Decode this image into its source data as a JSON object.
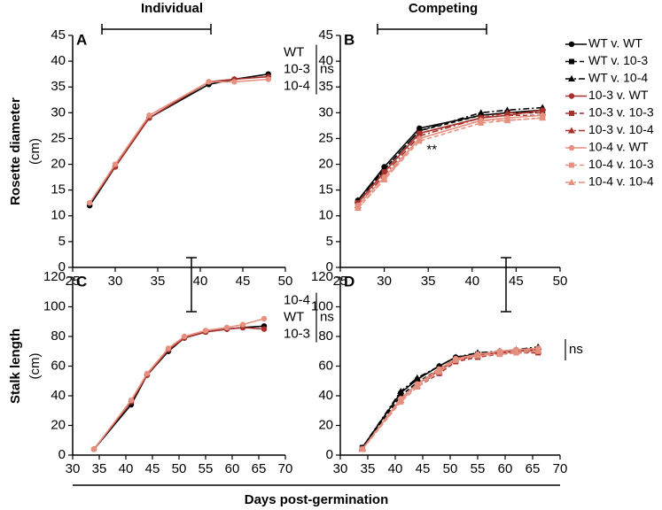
{
  "chart_data": [
    {
      "type": "line",
      "panel_label": "A",
      "title": "Individual",
      "ylabel": [
        "Rosette diameter",
        "(cm)"
      ],
      "x": [
        27,
        30,
        34,
        41,
        44,
        48
      ],
      "series": [
        {
          "name": "WT",
          "color": "#000000",
          "dash": "solid",
          "marker": "circle",
          "values": [
            12,
            19.5,
            29,
            35.5,
            36.5,
            37.5
          ]
        },
        {
          "name": "10-3",
          "color": "#a8312b",
          "dash": "solid",
          "marker": "circle",
          "values": [
            12.5,
            19.5,
            29,
            36,
            36.5,
            37
          ]
        },
        {
          "name": "10-4",
          "color": "#e8907f",
          "dash": "solid",
          "marker": "circle",
          "values": [
            12.5,
            20,
            29.5,
            36,
            36,
            36.5
          ]
        }
      ],
      "end_labels": true,
      "annotations": [
        "ns"
      ],
      "xlim": [
        25,
        50
      ],
      "xticks": [
        25,
        30,
        35,
        40,
        45,
        50
      ],
      "ylim": [
        0,
        45
      ],
      "yticks": [
        0,
        5,
        10,
        15,
        20,
        25,
        30,
        35,
        40,
        45
      ]
    },
    {
      "type": "line",
      "panel_label": "B",
      "title": "Competing",
      "x": [
        27,
        30,
        34,
        41,
        44,
        48
      ],
      "series": [
        {
          "name": "WT v. WT",
          "color": "#000000",
          "dash": "solid",
          "marker": "circle",
          "values": [
            13,
            19.5,
            27,
            29.5,
            30,
            30.5
          ]
        },
        {
          "name": "WT v. 10-3",
          "color": "#000000",
          "dash": "dashed",
          "marker": "square",
          "values": [
            12.5,
            19,
            26.5,
            29.5,
            30,
            30
          ]
        },
        {
          "name": "WT v. 10-4",
          "color": "#000000",
          "dash": "dashdot",
          "marker": "triangle",
          "values": [
            13,
            19,
            26.5,
            30,
            30.5,
            31
          ]
        },
        {
          "name": "10-3 v. WT",
          "color": "#a8312b",
          "dash": "solid",
          "marker": "circle",
          "values": [
            12.5,
            18.5,
            26,
            29,
            29.5,
            30.5
          ]
        },
        {
          "name": "10-3 v. 10-3",
          "color": "#a8312b",
          "dash": "dashed",
          "marker": "square",
          "values": [
            12.5,
            18.5,
            26,
            29,
            29.5,
            29.5
          ]
        },
        {
          "name": "10-3 v. 10-4",
          "color": "#a8312b",
          "dash": "dashdot",
          "marker": "triangle",
          "values": [
            12,
            18,
            25.5,
            29,
            30,
            30
          ]
        },
        {
          "name": "10-4 v. WT",
          "color": "#e8907f",
          "dash": "solid",
          "marker": "circle",
          "values": [
            12,
            17.5,
            25,
            28.5,
            29,
            29.5
          ]
        },
        {
          "name": "10-4 v. 10-3",
          "color": "#e8907f",
          "dash": "dashed",
          "marker": "square",
          "values": [
            11.5,
            17,
            24.5,
            28,
            28.5,
            29
          ]
        },
        {
          "name": "10-4 v. 10-4",
          "color": "#e8907f",
          "dash": "dashdot",
          "marker": "triangle",
          "values": [
            11.5,
            17,
            25,
            28.5,
            28.5,
            29
          ]
        }
      ],
      "legend": "outside-right",
      "annotations": [
        "**"
      ],
      "xlim": [
        25,
        50
      ],
      "xticks": [
        25,
        30,
        35,
        40,
        45,
        50
      ],
      "ylim": [
        0,
        45
      ],
      "yticks": [
        0,
        5,
        10,
        15,
        20,
        25,
        30,
        35,
        40,
        45
      ]
    },
    {
      "type": "line",
      "panel_label": "C",
      "ylabel": [
        "Stalk length",
        "(cm)"
      ],
      "xlabel": "Days post-germination",
      "x": [
        34,
        41,
        44,
        48,
        51,
        55,
        59,
        62,
        66
      ],
      "series": [
        {
          "name": "WT",
          "color": "#000000",
          "dash": "solid",
          "marker": "circle",
          "values": [
            4,
            34,
            54,
            70,
            79,
            83,
            85,
            86,
            87
          ]
        },
        {
          "name": "10-3",
          "color": "#a8312b",
          "dash": "solid",
          "marker": "circle",
          "values": [
            4,
            36,
            54,
            71,
            79,
            83,
            85,
            86,
            85
          ]
        },
        {
          "name": "10-4",
          "color": "#e8907f",
          "dash": "solid",
          "marker": "circle",
          "values": [
            4,
            37,
            55,
            72,
            80,
            84,
            86,
            88,
            92
          ]
        }
      ],
      "end_labels": true,
      "annotations": [
        "ns"
      ],
      "xlim": [
        30,
        70
      ],
      "xticks": [
        30,
        35,
        40,
        45,
        50,
        55,
        60,
        65,
        70
      ],
      "ylim": [
        0,
        120
      ],
      "yticks": [
        0,
        20,
        40,
        60,
        80,
        100,
        120
      ]
    },
    {
      "type": "line",
      "panel_label": "D",
      "x": [
        34,
        41,
        44,
        48,
        51,
        55,
        59,
        62,
        66
      ],
      "series": [
        {
          "color": "#000000",
          "dash": "solid",
          "marker": "circle",
          "values": [
            5,
            42,
            51,
            60,
            66,
            68,
            70,
            71,
            72
          ]
        },
        {
          "color": "#000000",
          "dash": "dashed",
          "marker": "square",
          "values": [
            5,
            40,
            49,
            58,
            65,
            68,
            69,
            70,
            71
          ]
        },
        {
          "color": "#000000",
          "dash": "dashdot",
          "marker": "triangle",
          "values": [
            5,
            43,
            52,
            60,
            66,
            69,
            70,
            71,
            73
          ]
        },
        {
          "color": "#a8312b",
          "dash": "solid",
          "marker": "circle",
          "values": [
            4,
            38,
            48,
            57,
            64,
            67,
            69,
            70,
            71
          ]
        },
        {
          "color": "#a8312b",
          "dash": "dashed",
          "marker": "square",
          "values": [
            4,
            36,
            46,
            55,
            63,
            66,
            68,
            69,
            69
          ]
        },
        {
          "color": "#a8312b",
          "dash": "dashdot",
          "marker": "triangle",
          "values": [
            4,
            37,
            47,
            56,
            64,
            67,
            69,
            70,
            70
          ]
        },
        {
          "color": "#e8907f",
          "dash": "solid",
          "marker": "circle",
          "values": [
            4,
            38,
            48,
            58,
            65,
            68,
            70,
            71,
            72
          ]
        },
        {
          "color": "#e8907f",
          "dash": "dashed",
          "marker": "square",
          "values": [
            4,
            36,
            46,
            56,
            64,
            67,
            68,
            69,
            70
          ]
        },
        {
          "color": "#e8907f",
          "dash": "dashdot",
          "marker": "triangle",
          "values": [
            4,
            37,
            47,
            57,
            64,
            67,
            69,
            70,
            71
          ]
        }
      ],
      "annotations": [
        "ns"
      ],
      "xlim": [
        30,
        70
      ],
      "xticks": [
        30,
        35,
        40,
        45,
        50,
        55,
        60,
        65,
        70
      ],
      "ylim": [
        0,
        120
      ],
      "yticks": [
        0,
        20,
        40,
        60,
        80,
        100,
        120
      ]
    }
  ]
}
